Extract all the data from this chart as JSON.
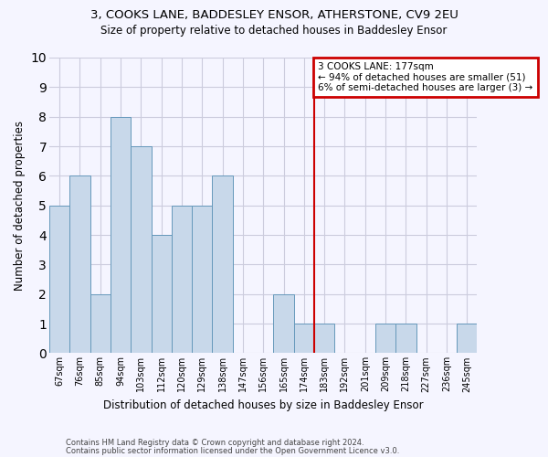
{
  "title1": "3, COOKS LANE, BADDESLEY ENSOR, ATHERSTONE, CV9 2EU",
  "title2": "Size of property relative to detached houses in Baddesley Ensor",
  "xlabel": "Distribution of detached houses by size in Baddesley Ensor",
  "ylabel": "Number of detached properties",
  "categories": [
    "67sqm",
    "76sqm",
    "85sqm",
    "94sqm",
    "103sqm",
    "112sqm",
    "120sqm",
    "129sqm",
    "138sqm",
    "147sqm",
    "156sqm",
    "165sqm",
    "174sqm",
    "183sqm",
    "192sqm",
    "201sqm",
    "209sqm",
    "218sqm",
    "227sqm",
    "236sqm",
    "245sqm"
  ],
  "values": [
    5,
    6,
    2,
    8,
    7,
    4,
    5,
    5,
    6,
    0,
    0,
    2,
    1,
    1,
    0,
    0,
    1,
    1,
    0,
    0,
    1
  ],
  "bar_color": "#c8d8ea",
  "bar_edge_color": "#6699bb",
  "vline_color": "#cc0000",
  "vline_x": 12.5,
  "annotation_text": "3 COOKS LANE: 177sqm\n← 94% of detached houses are smaller (51)\n6% of semi-detached houses are larger (3) →",
  "annotation_box_color": "#cc0000",
  "ylim": [
    0,
    10
  ],
  "yticks": [
    0,
    1,
    2,
    3,
    4,
    5,
    6,
    7,
    8,
    9,
    10
  ],
  "footer1": "Contains HM Land Registry data © Crown copyright and database right 2024.",
  "footer2": "Contains public sector information licensed under the Open Government Licence v3.0.",
  "bg_color": "#f5f5ff",
  "title1_fontsize": 9.5,
  "title2_fontsize": 8.5,
  "ylabel_fontsize": 8.5,
  "xlabel_fontsize": 8.5,
  "tick_fontsize": 7,
  "annotation_fontsize": 7.5,
  "footer_fontsize": 6,
  "grid_color": "#ccccdd"
}
